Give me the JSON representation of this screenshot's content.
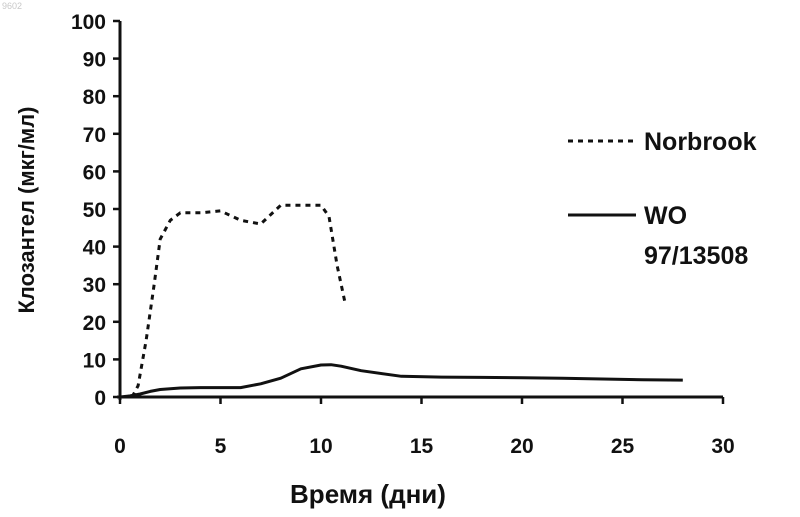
{
  "corner_mark": "9602",
  "chart_data": {
    "type": "line",
    "title": "",
    "xlabel": "Время (дни)",
    "ylabel": "Клозантел (мкг/мл)",
    "xlim": [
      0,
      30
    ],
    "ylim": [
      0,
      100
    ],
    "xticks": [
      0,
      5,
      10,
      15,
      20,
      25,
      30
    ],
    "yticks": [
      0,
      10,
      20,
      30,
      40,
      50,
      60,
      70,
      80,
      90,
      100
    ],
    "grid": false,
    "legend_position": "right",
    "series": [
      {
        "name": "Norbrook",
        "style": "dotted",
        "color": "#111111",
        "x": [
          0.6,
          0.9,
          1.3,
          1.7,
          2.0,
          2.5,
          3.0,
          4.0,
          5.0,
          6.0,
          7.0,
          8.0,
          9.0,
          10.0,
          10.4,
          10.8,
          11.2
        ],
        "y": [
          0,
          3,
          15,
          30,
          42,
          47,
          49,
          49,
          49.5,
          47,
          46,
          51,
          51,
          51,
          48,
          35,
          25
        ]
      },
      {
        "name": "WO 97/13508",
        "style": "solid",
        "color": "#111111",
        "x": [
          0,
          0.5,
          1,
          1.5,
          2,
          3,
          4,
          5,
          6,
          7,
          8,
          9,
          10,
          10.5,
          11,
          12,
          14,
          16,
          18,
          20,
          22,
          24,
          26,
          28
        ],
        "y": [
          0,
          0.3,
          0.8,
          1.5,
          2,
          2.4,
          2.5,
          2.5,
          2.5,
          3.5,
          5,
          7.5,
          8.5,
          8.6,
          8.2,
          7,
          5.5,
          5.3,
          5.2,
          5.1,
          5.0,
          4.8,
          4.6,
          4.5
        ]
      }
    ]
  }
}
